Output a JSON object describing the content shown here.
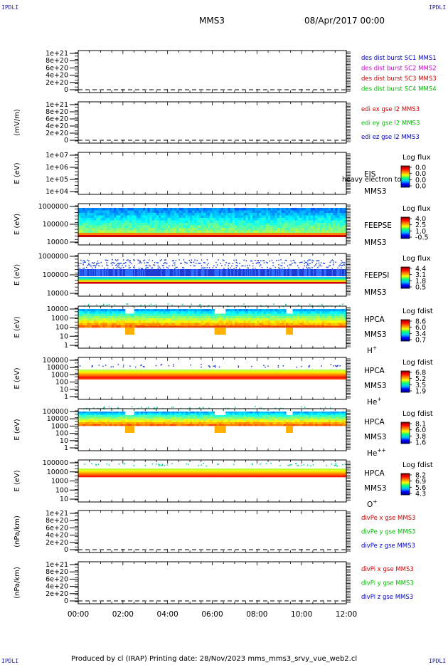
{
  "corners": {
    "tl": "IPDLI",
    "tr": "IPDLI",
    "bl": "IPDLI",
    "br": "IPDLI"
  },
  "header": {
    "spacecraft": "MMS3",
    "date": "08/Apr/2017 00:00"
  },
  "footer": {
    "text": "Produced by cl (IRAP)   Printing date: 28/Nov/2023   mms_mms3_srvy_vue_web2.cl"
  },
  "time_axis": {
    "ticks": [
      "00:00",
      "02:00",
      "04:00",
      "06:00",
      "08:00",
      "10:00",
      "12:00"
    ]
  },
  "colors": {
    "blue": "#0000cc",
    "magenta": "#cc00cc",
    "red": "#cc0000",
    "green": "#00bb00"
  },
  "chart_data": [
    {
      "type": "line",
      "ylabel": "",
      "ytick_labels": [
        "1e+21",
        "8e+20",
        "6e+20",
        "4e+20",
        "2e+20",
        "0"
      ],
      "legend": [
        {
          "text": "des dist burst SC1 MMS1",
          "color": "#0000cc"
        },
        {
          "text": "des dist burst SC2 MMS2",
          "color": "#cc00cc"
        },
        {
          "text": "des dist burst SC3 MMS3",
          "color": "#cc0000"
        },
        {
          "text": "des dist burst SC4 MMS4",
          "color": "#00bb00"
        }
      ]
    },
    {
      "type": "line",
      "ylabel": "(mV/m)",
      "ytick_labels": [
        "1e+21",
        "8e+20",
        "6e+20",
        "4e+20",
        "2e+20",
        "0"
      ],
      "legend": [
        {
          "text": "edi ex gse l2 MMS3",
          "color": "#cc0000"
        },
        {
          "text": "edi ey gse l2 MMS3",
          "color": "#00bb00"
        },
        {
          "text": "edi ez gse l2 MMS3",
          "color": "#0000cc"
        }
      ]
    },
    {
      "type": "heatmap",
      "ylabel": "E (eV)",
      "ytick_labels": [
        "1e+07",
        "1e+06",
        "1e+05",
        "1e+04"
      ],
      "instrument": "EIS",
      "sc": "MMS3",
      "overlay_text": "heavy electron to",
      "colorbar_title": "Log flux",
      "colorbar_ticks": [
        "0.0",
        "0.0",
        "0.0",
        "0.0"
      ]
    },
    {
      "type": "heatmap",
      "ylabel": "E (eV)",
      "ytick_labels": [
        "1000000",
        "100000",
        "10000"
      ],
      "instrument": "FEEPSE",
      "sc": "MMS3",
      "colorbar_title": "Log flux",
      "colorbar_ticks": [
        "4.0",
        "2.5",
        "1.0",
        "-0.5"
      ]
    },
    {
      "type": "heatmap",
      "ylabel": "E (eV)",
      "ytick_labels": [
        "1000000",
        "100000",
        "10000"
      ],
      "instrument": "FEEPSI",
      "sc": "MMS3",
      "colorbar_title": "Log flux",
      "colorbar_ticks": [
        "4.4",
        "3.1",
        "1.8",
        "0.5"
      ]
    },
    {
      "type": "heatmap",
      "ylabel": "E (eV)",
      "ytick_labels": [
        "10000",
        "1000",
        "100",
        "10",
        "1"
      ],
      "instrument": "HPCA",
      "sc": "MMS3",
      "species": "H",
      "species_sup": "+",
      "colorbar_title": "Log fdist",
      "colorbar_ticks": [
        "8.6",
        "6.0",
        "3.4",
        "0.7"
      ]
    },
    {
      "type": "heatmap",
      "ylabel": "E (eV)",
      "ytick_labels": [
        "100000",
        "10000",
        "1000",
        "100",
        "10",
        "1"
      ],
      "instrument": "HPCA",
      "sc": "MMS3",
      "species": "He",
      "species_sup": "+",
      "colorbar_title": "Log fdist",
      "colorbar_ticks": [
        "6.8",
        "5.2",
        "3.5",
        "1.9"
      ]
    },
    {
      "type": "heatmap",
      "ylabel": "E (eV)",
      "ytick_labels": [
        "100000",
        "10000",
        "1000",
        "100",
        "10",
        "1"
      ],
      "instrument": "HPCA",
      "sc": "MMS3",
      "species": "He",
      "species_sup": "++",
      "colorbar_title": "Log fdist",
      "colorbar_ticks": [
        "8.1",
        "6.0",
        "3.8",
        "1.6"
      ]
    },
    {
      "type": "heatmap",
      "ylabel": "E (eV)",
      "ytick_labels": [
        "100000",
        "10000",
        "1000",
        "100",
        "10"
      ],
      "instrument": "HPCA",
      "sc": "MMS3",
      "species": "O",
      "species_sup": "+",
      "colorbar_title": "Log fdist",
      "colorbar_ticks": [
        "8.2",
        "6.9",
        "5.6",
        "4.3"
      ]
    },
    {
      "type": "line",
      "ylabel": "(nPa/km)",
      "ytick_labels": [
        "1e+21",
        "8e+20",
        "6e+20",
        "4e+20",
        "2e+20",
        "0"
      ],
      "legend": [
        {
          "text": "divPe x gse MMS3",
          "color": "#cc0000"
        },
        {
          "text": "divPe y gse MMS3",
          "color": "#00bb00"
        },
        {
          "text": "divPe z gse MMS3",
          "color": "#0000cc"
        }
      ]
    },
    {
      "type": "line",
      "ylabel": "(nPa/km)",
      "ytick_labels": [
        "1e+21",
        "8e+20",
        "6e+20",
        "4e+20",
        "2e+20",
        "0"
      ],
      "legend": [
        {
          "text": "divPi x gse MMS3",
          "color": "#cc0000"
        },
        {
          "text": "divPi y gse MMS3",
          "color": "#00bb00"
        },
        {
          "text": "divPi z gse MMS3",
          "color": "#0000cc"
        }
      ]
    }
  ]
}
